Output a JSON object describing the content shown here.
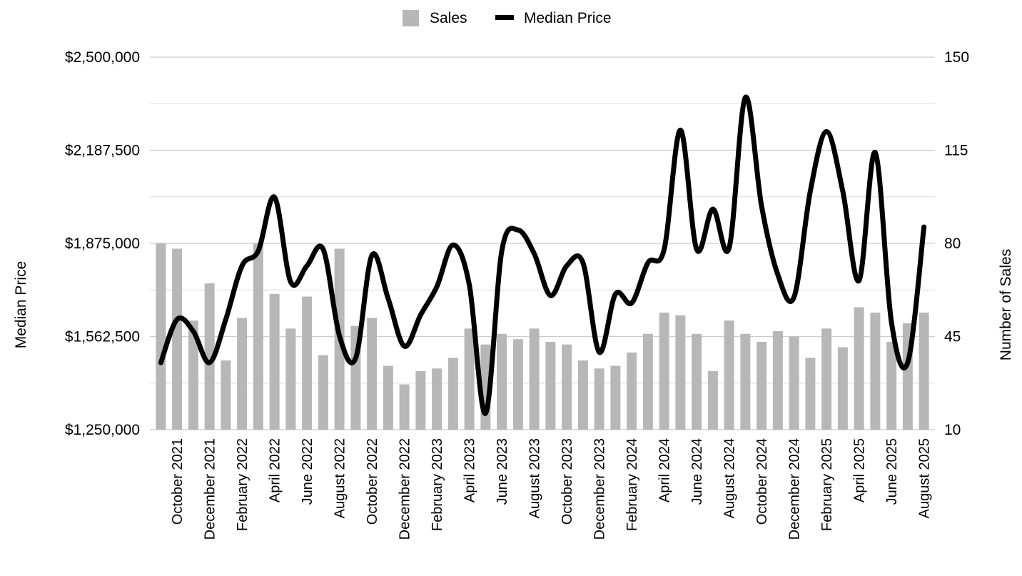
{
  "chart_data": {
    "type": "bar",
    "legend": {
      "placement": "top-center"
    },
    "colors": {
      "sales_bar": "#b7b7b7",
      "median_line": "#000000",
      "grid": "#cccccc"
    },
    "categories": [
      "September 2021",
      "October 2021",
      "November 2021",
      "December 2021",
      "January 2022",
      "February 2022",
      "March 2022",
      "April 2022",
      "May 2022",
      "June  2022",
      "July 2022",
      "August 2022",
      "September 2022",
      "October 2022",
      "November 2022",
      "December 2022",
      "January 2023",
      "February 2023",
      "March 2023",
      "April 2023",
      "May 2023",
      "June 2023",
      "July 2023",
      "August 2023",
      "September 2023",
      "October 2023",
      "November 2023",
      "December 2023",
      "January 2024",
      "February 2024",
      "March 2024",
      "April 2024",
      "May 2024",
      "June 2024",
      "July 2024",
      "August 2024",
      "September 2024",
      "October 2024",
      "November 2024",
      "December 2024",
      "January 2025",
      "February 2025",
      "March 2025",
      "April  2025",
      "May 2025",
      "June 2025",
      "July 2025",
      "August  2025"
    ],
    "x_tick_labels": [
      "October 2021",
      "December 2021",
      "February 2022",
      "April 2022",
      "June  2022",
      "August 2022",
      "October 2022",
      "December 2022",
      "February 2023",
      "April 2023",
      "June 2023",
      "August 2023",
      "October 2023",
      "December 2023",
      "February 2024",
      "April 2024",
      "June 2024",
      "August 2024",
      "October 2024",
      "December 2024",
      "February 2025",
      "April  2025",
      "June 2025",
      "August  2025"
    ],
    "series": [
      {
        "name": "Sales",
        "type": "bar",
        "axis": "right",
        "values": [
          80,
          78,
          51,
          65,
          36,
          52,
          80,
          61,
          48,
          60,
          38,
          78,
          49,
          52,
          34,
          27,
          32,
          33,
          37,
          48,
          42,
          46,
          44,
          48,
          43,
          42,
          36,
          33,
          34,
          39,
          46,
          54,
          53,
          46,
          32,
          51,
          46,
          43,
          47,
          45,
          37,
          48,
          41,
          56,
          54,
          43,
          50,
          54
        ]
      },
      {
        "name": "Median Price",
        "type": "line",
        "axis": "left",
        "values": [
          1475000,
          1620000,
          1580000,
          1475000,
          1620000,
          1800000,
          1850000,
          2030000,
          1745000,
          1800000,
          1855000,
          1565000,
          1490000,
          1835000,
          1690000,
          1530000,
          1635000,
          1730000,
          1870000,
          1735000,
          1305000,
          1850000,
          1920000,
          1840000,
          1700000,
          1800000,
          1810000,
          1510000,
          1705000,
          1675000,
          1810000,
          1855000,
          2255000,
          1855000,
          1990000,
          1860000,
          2365000,
          2000000,
          1770000,
          1695000,
          2050000,
          2250000,
          2050000,
          1750000,
          2180000,
          1610000,
          1475000,
          1930000
        ]
      }
    ],
    "y_left": {
      "label": "Median Price",
      "range": [
        1250000,
        2500000
      ],
      "ticks": [
        "$1,250,000",
        "$1,562,500",
        "$1,875,000",
        "$2,187,500",
        "$2,500,000"
      ]
    },
    "y_right": {
      "label": "Number of Sales",
      "range": [
        10,
        150
      ],
      "ticks": [
        "10",
        "45",
        "80",
        "115",
        "150"
      ]
    },
    "grid": true
  }
}
